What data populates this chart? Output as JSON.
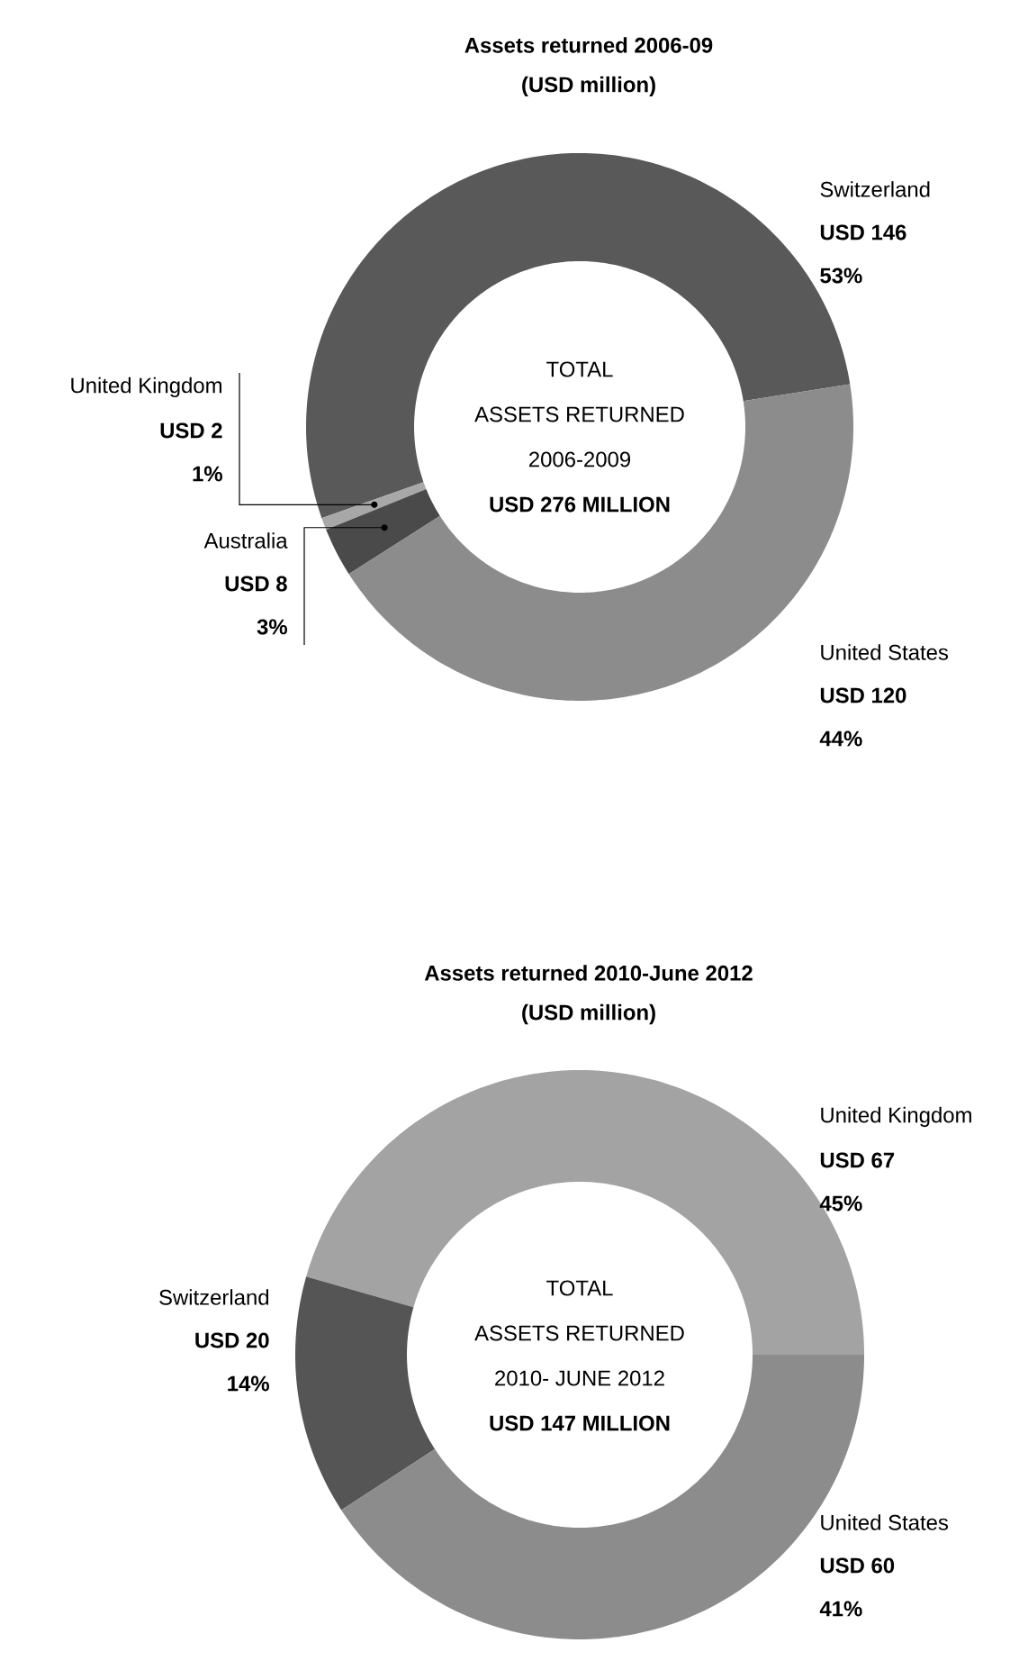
{
  "chart_data": [
    {
      "type": "donut",
      "title": "Assets returned 2006-09",
      "subtitle": "(USD million)",
      "categories": [
        "Switzerland",
        "United Kingdom",
        "Australia",
        "United States"
      ],
      "values": [
        146,
        2,
        8,
        120
      ],
      "colors": [
        "#595959",
        "#a8a8a8",
        "#4a4a4a",
        "#8c8c8c"
      ],
      "value_labels": [
        "USD 146",
        "USD 2",
        "USD 8",
        "USD 120"
      ],
      "annotations": [
        "53%",
        "1%",
        "3%",
        "44%",
        "TOTAL",
        "ASSETS RETURNED",
        "2006-2009",
        "USD 276 MILLION"
      ]
    },
    {
      "type": "donut",
      "title": "Assets returned 2010-June 2012",
      "subtitle": "(USD million)",
      "categories": [
        "United Kingdom",
        "Switzerland",
        "United States"
      ],
      "values": [
        67,
        20,
        60
      ],
      "colors": [
        "#a3a3a3",
        "#555555",
        "#8c8c8c"
      ],
      "value_labels": [
        "USD 67",
        "USD 20",
        "USD 60"
      ],
      "annotations": [
        "45%",
        "14%",
        "41%",
        "TOTAL",
        "ASSETS RETURNED",
        "2010- JUNE 2012",
        "USD 147 MILLION"
      ]
    }
  ]
}
